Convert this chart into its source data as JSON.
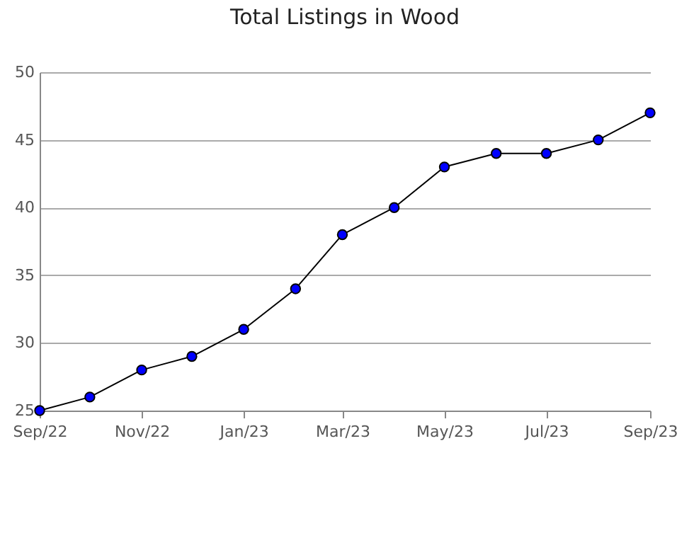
{
  "chart_data": {
    "type": "line",
    "title": "Total Listings in Wood",
    "x": [
      "2022-09",
      "2022-10",
      "2022-11",
      "2022-12",
      "2023-01",
      "2023-02",
      "2023-03",
      "2023-04",
      "2023-05",
      "2023-06",
      "2023-07",
      "2023-08",
      "2023-09"
    ],
    "series": [
      {
        "color": "#0000ff",
        "values": [
          25,
          26,
          28,
          29,
          31,
          34,
          38,
          40,
          43,
          44,
          44,
          45,
          47
        ]
      }
    ],
    "xlim": [
      "2022-09",
      "2023-09"
    ],
    "xticks": [
      {
        "value": "2022-09",
        "label": "Sep/22"
      },
      {
        "value": "2022-11",
        "label": "Nov/22"
      },
      {
        "value": "2023-01",
        "label": "Jan/23"
      },
      {
        "value": "2023-03",
        "label": "Mar/23"
      },
      {
        "value": "2023-05",
        "label": "May/23"
      },
      {
        "value": "2023-07",
        "label": "Jul/23"
      },
      {
        "value": "2023-09",
        "label": "Sep/23"
      }
    ],
    "ylim": [
      25,
      50
    ],
    "yticks": [
      25,
      30,
      35,
      40,
      45,
      50
    ],
    "grid": "y",
    "marker": "circle",
    "line_style": "solid"
  }
}
